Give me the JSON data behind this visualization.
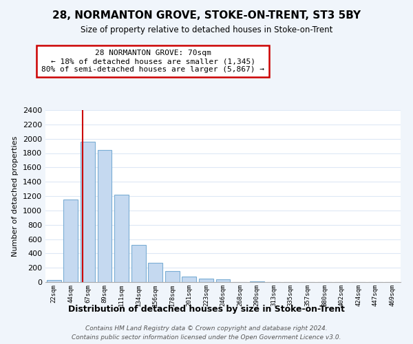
{
  "title": "28, NORMANTON GROVE, STOKE-ON-TRENT, ST3 5BY",
  "subtitle": "Size of property relative to detached houses in Stoke-on-Trent",
  "xlabel": "Distribution of detached houses by size in Stoke-on-Trent",
  "ylabel": "Number of detached properties",
  "bar_color": "#c5d9f0",
  "bar_edge_color": "#7aadd4",
  "categories": [
    "22sqm",
    "44sqm",
    "67sqm",
    "89sqm",
    "111sqm",
    "134sqm",
    "156sqm",
    "178sqm",
    "201sqm",
    "223sqm",
    "246sqm",
    "268sqm",
    "290sqm",
    "313sqm",
    "335sqm",
    "357sqm",
    "380sqm",
    "402sqm",
    "424sqm",
    "447sqm",
    "469sqm"
  ],
  "values": [
    25,
    1150,
    1960,
    1840,
    1220,
    520,
    265,
    150,
    80,
    50,
    38,
    2,
    5,
    2,
    2,
    1,
    1,
    0,
    0,
    0,
    0
  ],
  "ylim": [
    0,
    2400
  ],
  "yticks": [
    0,
    200,
    400,
    600,
    800,
    1000,
    1200,
    1400,
    1600,
    1800,
    2000,
    2200,
    2400
  ],
  "annotation_title": "28 NORMANTON GROVE: 70sqm",
  "annotation_line1": "← 18% of detached houses are smaller (1,345)",
  "annotation_line2": "80% of semi-detached houses are larger (5,867) →",
  "annotation_box_color": "#ffffff",
  "annotation_box_edge": "#cc0000",
  "red_line_color": "#cc0000",
  "footnote1": "Contains HM Land Registry data © Crown copyright and database right 2024.",
  "footnote2": "Contains public sector information licensed under the Open Government Licence v3.0.",
  "plot_bg_color": "#ffffff",
  "fig_bg_color": "#f0f5fb",
  "grid_color": "#dde8f5"
}
